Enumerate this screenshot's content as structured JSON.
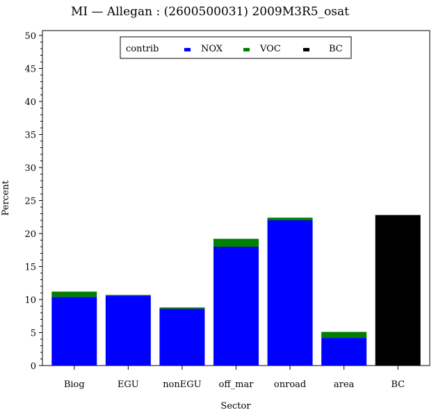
{
  "chart_data": {
    "type": "bar",
    "stacked": true,
    "title": "MI  —  Allegan : (2600500031) 2009M3R5_osat",
    "xlabel": "Sector",
    "ylabel": "Percent",
    "ylim": [
      0,
      50
    ],
    "yticks": [
      0,
      5,
      10,
      15,
      20,
      25,
      30,
      35,
      40,
      45,
      50
    ],
    "grid": false,
    "legend": {
      "title": "contrib",
      "position": "top-center"
    },
    "categories": [
      "Biog",
      "EGU",
      "nonEGU",
      "off_mar",
      "onroad",
      "area",
      "BC"
    ],
    "series": [
      {
        "name": "NOX",
        "color": "#0000ff",
        "values": [
          10.4,
          10.6,
          8.6,
          18.0,
          22.0,
          4.2,
          0
        ]
      },
      {
        "name": "VOC",
        "color": "#008000",
        "values": [
          0.8,
          0.1,
          0.2,
          1.2,
          0.4,
          0.9,
          0
        ]
      },
      {
        "name": "BC",
        "color": "#000000",
        "values": [
          0,
          0,
          0,
          0,
          0,
          0,
          22.8
        ]
      }
    ]
  }
}
